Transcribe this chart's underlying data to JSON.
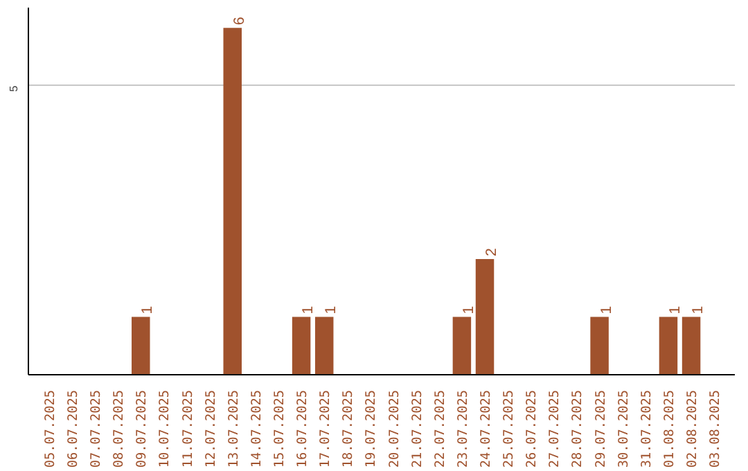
{
  "chart_data": {
    "type": "bar",
    "categories": [
      "05.07.2025",
      "06.07.2025",
      "07.07.2025",
      "08.07.2025",
      "09.07.2025",
      "10.07.2025",
      "11.07.2025",
      "12.07.2025",
      "13.07.2025",
      "14.07.2025",
      "15.07.2025",
      "16.07.2025",
      "17.07.2025",
      "18.07.2025",
      "19.07.2025",
      "20.07.2025",
      "21.07.2025",
      "22.07.2025",
      "23.07.2025",
      "24.07.2025",
      "25.07.2025",
      "26.07.2025",
      "27.07.2025",
      "28.07.2025",
      "29.07.2025",
      "30.07.2025",
      "31.07.2025",
      "01.08.2025",
      "02.08.2025",
      "03.08.2025"
    ],
    "values": [
      0,
      0,
      0,
      0,
      1,
      0,
      0,
      0,
      6,
      0,
      0,
      1,
      1,
      0,
      0,
      0,
      0,
      0,
      1,
      2,
      0,
      0,
      0,
      0,
      1,
      0,
      0,
      1,
      1,
      0
    ],
    "color": "#a0522d",
    "ylim": [
      0,
      6.35
    ],
    "yticks": [
      5
    ],
    "grid": "y",
    "value_labels": [
      null,
      null,
      null,
      null,
      "1",
      null,
      null,
      null,
      "6",
      null,
      null,
      "1",
      "1",
      null,
      null,
      null,
      null,
      null,
      "1",
      "2",
      null,
      null,
      null,
      null,
      "1",
      null,
      null,
      "1",
      "1",
      null
    ]
  }
}
